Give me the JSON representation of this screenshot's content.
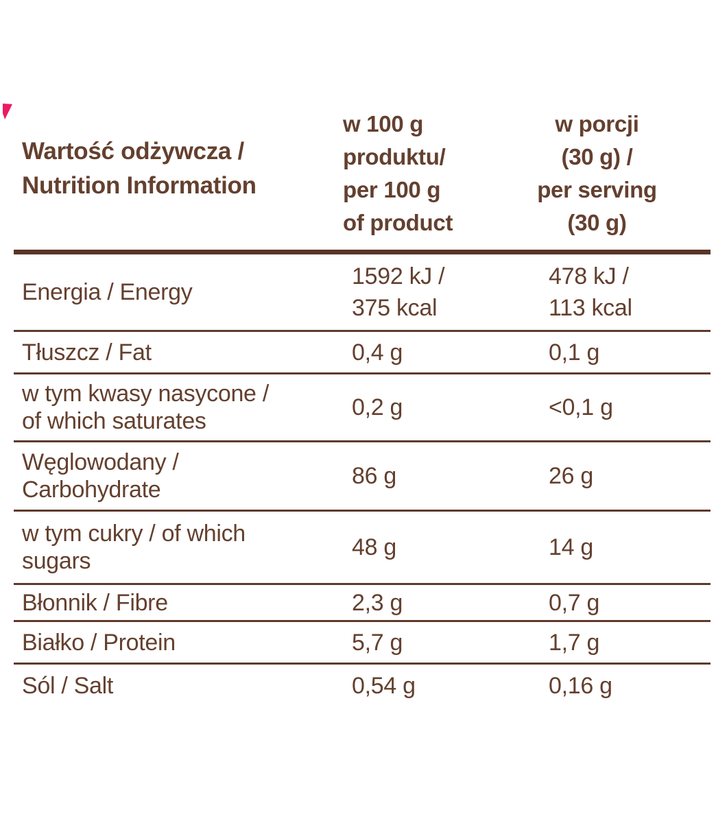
{
  "colors": {
    "text_brown": "#64402f",
    "rule_brown": "#5d3a2a",
    "thick_rule_brown": "#5a3526",
    "accent_pink": "#ec1a64",
    "background": "#ffffff"
  },
  "table": {
    "header": {
      "title": "Wartość odżywcza /\nNutrition Information",
      "col_per_100g": "w 100 g\nproduktu/\nper 100 g\nof product",
      "col_per_serving": "w porcji\n(30 g) /\nper serving\n(30 g)"
    },
    "rows": [
      {
        "label": "Energia / Energy",
        "per_100g": "1592 kJ /\n375 kcal",
        "per_serving": "478 kJ /\n113 kcal"
      },
      {
        "label": "Tłuszcz / Fat",
        "per_100g": "0,4 g",
        "per_serving": "0,1 g"
      },
      {
        "label": "w tym kwasy nasycone /\nof which saturates",
        "per_100g": "0,2 g",
        "per_serving": "<0,1 g"
      },
      {
        "label": "Węglowodany /\nCarbohydrate",
        "per_100g": "86 g",
        "per_serving": "26 g"
      },
      {
        "label": "w tym cukry / of which\nsugars",
        "per_100g": "48 g",
        "per_serving": "14 g"
      },
      {
        "label": "Błonnik / Fibre",
        "per_100g": "2,3 g",
        "per_serving": "0,7 g"
      },
      {
        "label": "Białko / Protein",
        "per_100g": "5,7 g",
        "per_serving": "1,7 g"
      },
      {
        "label": "Sól / Salt",
        "per_100g": "0,54 g",
        "per_serving": "0,16 g"
      }
    ]
  }
}
